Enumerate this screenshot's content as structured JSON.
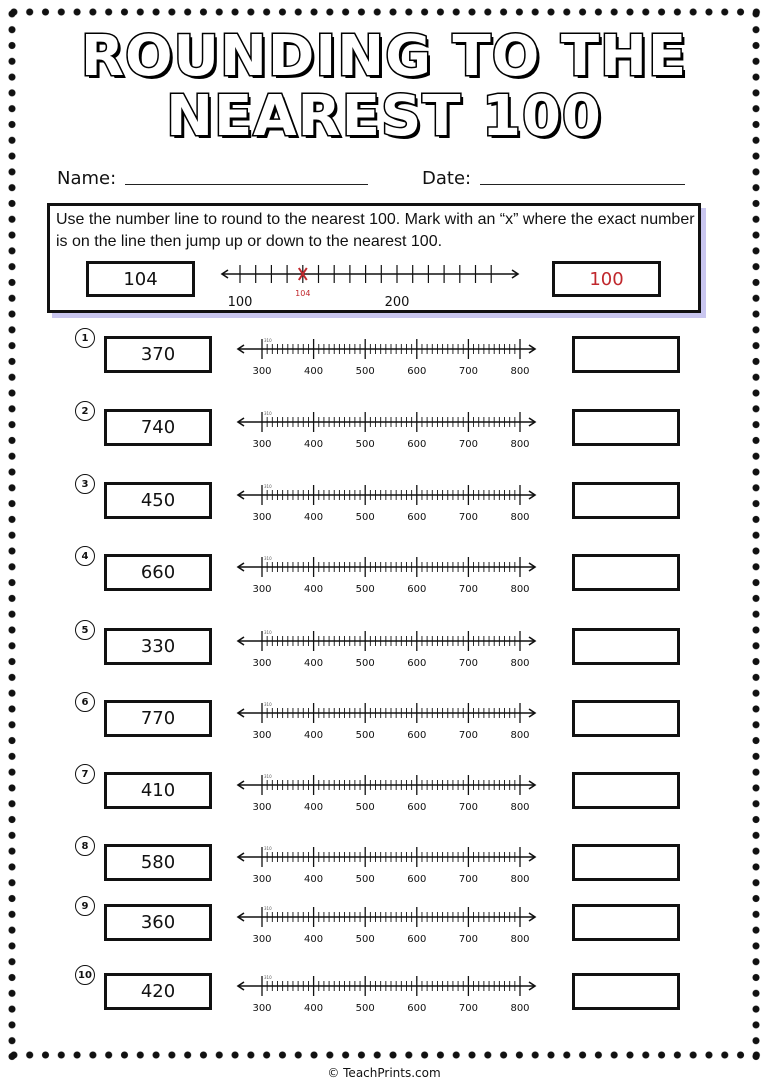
{
  "title": {
    "line1": "ROUNDING TO THE",
    "line2": "NEAREST 100"
  },
  "name_label": "Name:",
  "date_label": "Date:",
  "instructions": "Use the number line to round to the nearest 100. Mark with an “x” where the exact number is on the line then jump up or down to the nearest 100.",
  "example": {
    "number": "104",
    "answer": "100",
    "marker_label": "104",
    "line_labels": [
      "100",
      "200"
    ],
    "accent_color": "#c0282d"
  },
  "number_line_labels": [
    "300",
    "400",
    "500",
    "600",
    "700",
    "800"
  ],
  "number_line_small_label": "310",
  "problems": [
    {
      "index": "1",
      "number": "370"
    },
    {
      "index": "2",
      "number": "740"
    },
    {
      "index": "3",
      "number": "450"
    },
    {
      "index": "4",
      "number": "660"
    },
    {
      "index": "5",
      "number": "330"
    },
    {
      "index": "6",
      "number": "770"
    },
    {
      "index": "7",
      "number": "410"
    },
    {
      "index": "8",
      "number": "580"
    },
    {
      "index": "9",
      "number": "360"
    },
    {
      "index": "10",
      "number": "420"
    }
  ],
  "footer": "© TeachPrints.com"
}
